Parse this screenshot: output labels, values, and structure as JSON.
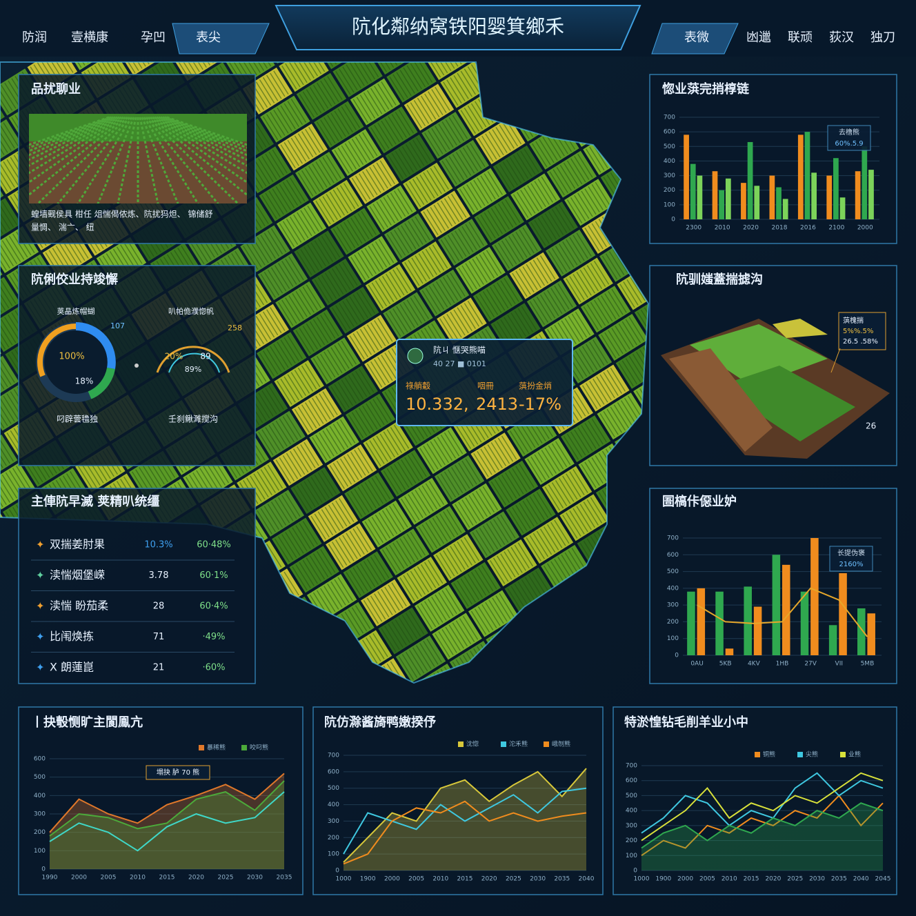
{
  "header": {
    "title": "阬化鄰纳窝铁阳婴箕鄉禾",
    "nav_left": [
      "防润",
      "壹横康",
      "孕凹",
      "表尖"
    ],
    "nav_right": [
      "表微",
      "凼邋",
      "联顽",
      "荻汉",
      "独刀"
    ]
  },
  "panels": {
    "crop": {
      "title": "品扰聊业",
      "caption": [
        "蝗墙觋侯具 柑任 俎惴偈侬炼、阬扰犸炟、 锦储舒",
        "量惆、 湍亠、 纽"
      ]
    },
    "gauges": {
      "title": "阬俐佼业持竣懈",
      "items": [
        {
          "label": "荚瞐炼帽蝴",
          "top": "107",
          "values": [
            "100%",
            "18%"
          ],
          "caption": "叼辟蕓氇独"
        },
        {
          "label": "叭帕佹濮惚帆",
          "top": "258",
          "values": [
            "20%",
            "89",
            "89%"
          ],
          "caption": "壬刹鳅濉搅沟"
        }
      ]
    },
    "list": {
      "title": "主俥阬早滅 荚精叭统缰",
      "rows": [
        [
          "双揣姜肘果",
          "10.3%",
          "60·48%"
        ],
        [
          "渎惴烟堡嵘",
          "3.78",
          "60·1%"
        ],
        [
          "渎惴 盼茄柔",
          "28",
          "60·4%"
        ],
        [
          "比闱焕拣",
          "71",
          "·49%"
        ],
        [
          "X 朗蓮崑",
          "21",
          "·60%"
        ]
      ]
    },
    "popup": {
      "title": "阬ㄐ 惬哭熊喵",
      "subtitle": "40 27 ■ 0101",
      "labels": [
        "祿艄觳",
        "咽冊",
        "葓扮金焇"
      ],
      "values": [
        "10.332,",
        "2413",
        "-17%"
      ]
    },
    "map3d": {
      "title": "阬驯媸蓋揣摅沟",
      "box": [
        "葓槐揣",
        "5%%.5%",
        "26.5 .58%"
      ],
      "note": "26"
    }
  },
  "charts": [
    {
      "type": "bar",
      "title": "惚业葓完捎椁链",
      "legend_box": [
        "去橹熊",
        "60%.5.9"
      ],
      "categories": [
        "2300",
        "2010",
        "2020",
        "2018",
        "2016",
        "2100",
        "2000"
      ],
      "ylim": [
        0,
        700
      ],
      "yticks": [
        0,
        100,
        200,
        300,
        400,
        500,
        600,
        700
      ],
      "series": [
        {
          "color": "#f08c1e",
          "values": [
            580,
            330,
            250,
            300,
            580,
            300,
            330
          ]
        },
        {
          "color": "#2fa84f",
          "values": [
            380,
            200,
            530,
            220,
            600,
            420,
            500
          ]
        },
        {
          "color": "#7cd35a",
          "values": [
            300,
            280,
            230,
            140,
            320,
            150,
            340
          ]
        }
      ]
    },
    {
      "type": "bar",
      "title": "圄槁佧僫业妒",
      "legend_box": [
        "长提伪褒",
        "2160%"
      ],
      "categories": [
        "0AU",
        "5KB",
        "4KV",
        "1HB",
        "27V",
        "VII",
        "5MB"
      ],
      "ylim": [
        0,
        700
      ],
      "yticks": [
        0,
        100,
        200,
        300,
        400,
        500,
        600,
        700
      ],
      "series": [
        {
          "color": "#2fa84f",
          "values": [
            380,
            380,
            410,
            600,
            380,
            180,
            280
          ]
        },
        {
          "color": "#f08c1e",
          "values": [
            400,
            40,
            290,
            540,
            700,
            490,
            250
          ]
        },
        {
          "type": "line",
          "color": "#e6a72a",
          "values": [
            300,
            200,
            190,
            200,
            400,
            330,
            110
          ]
        }
      ]
    },
    {
      "type": "line",
      "title": "丨抉彀恻旷主閬鳯亢",
      "annotation": "塌抉 胪 70 熊",
      "categories": [
        "1990",
        "2000",
        "2005",
        "2010",
        "2015",
        "2020",
        "2025",
        "2030",
        "2035"
      ],
      "ylim": [
        0,
        600
      ],
      "yticks": [
        0,
        100,
        200,
        300,
        400,
        500,
        600
      ],
      "series": [
        {
          "name": "暴稀熊",
          "type": "area",
          "color": "#e0782a",
          "values": [
            200,
            380,
            300,
            250,
            350,
            400,
            460,
            380,
            520
          ]
        },
        {
          "name": "咬叼熊",
          "type": "area",
          "color": "#4caa3a",
          "values": [
            180,
            300,
            280,
            220,
            250,
            380,
            420,
            320,
            480
          ]
        },
        {
          "color": "#3fd8c8",
          "values": [
            150,
            250,
            200,
            100,
            230,
            300,
            250,
            280,
            420
          ]
        }
      ]
    },
    {
      "type": "line",
      "title": "阬仿滁酱旖鸭嫩揆伃",
      "categories": [
        "1000",
        "1900",
        "2000",
        "2005",
        "2010",
        "2015",
        "2020",
        "2025",
        "2030",
        "2035",
        "2040"
      ],
      "ylim": [
        0,
        700
      ],
      "yticks": [
        0,
        100,
        200,
        300,
        400,
        500,
        600,
        700
      ],
      "series": [
        {
          "name": "沈惚",
          "type": "area",
          "color": "#d8c83a",
          "values": [
            50,
            200,
            350,
            300,
            500,
            550,
            420,
            520,
            600,
            450,
            620
          ]
        },
        {
          "name": "沱禾熊",
          "color": "#3fc8e0",
          "values": [
            100,
            350,
            300,
            250,
            400,
            300,
            380,
            460,
            350,
            480,
            500
          ]
        },
        {
          "name": "峨刎熊",
          "color": "#f08c1e",
          "values": [
            40,
            100,
            300,
            380,
            350,
            420,
            300,
            350,
            300,
            330,
            350
          ]
        }
      ]
    },
    {
      "type": "line",
      "title": "特淤惶钻毛削羊业小中",
      "categories": [
        "1000",
        "1900",
        "2000",
        "2005",
        "2010",
        "2015",
        "2020",
        "2025",
        "2030",
        "2035",
        "2040",
        "2045"
      ],
      "ylim": [
        0,
        700
      ],
      "yticks": [
        0,
        100,
        200,
        300,
        400,
        500,
        600,
        700
      ],
      "series": [
        {
          "name": "铜熊",
          "color": "#f08c1e",
          "values": [
            100,
            200,
            150,
            300,
            250,
            350,
            300,
            400,
            350,
            500,
            300,
            450
          ]
        },
        {
          "name": "尖熊",
          "color": "#3fc8e0",
          "values": [
            250,
            350,
            500,
            450,
            300,
            400,
            350,
            550,
            650,
            500,
            600,
            550
          ]
        },
        {
          "name": "业熊",
          "color": "#d8e03a",
          "values": [
            200,
            300,
            400,
            550,
            350,
            450,
            400,
            500,
            450,
            550,
            650,
            600
          ]
        },
        {
          "type": "area",
          "color": "#2fa84f",
          "values": [
            150,
            250,
            300,
            200,
            300,
            250,
            350,
            300,
            400,
            350,
            450,
            400
          ]
        }
      ]
    }
  ]
}
